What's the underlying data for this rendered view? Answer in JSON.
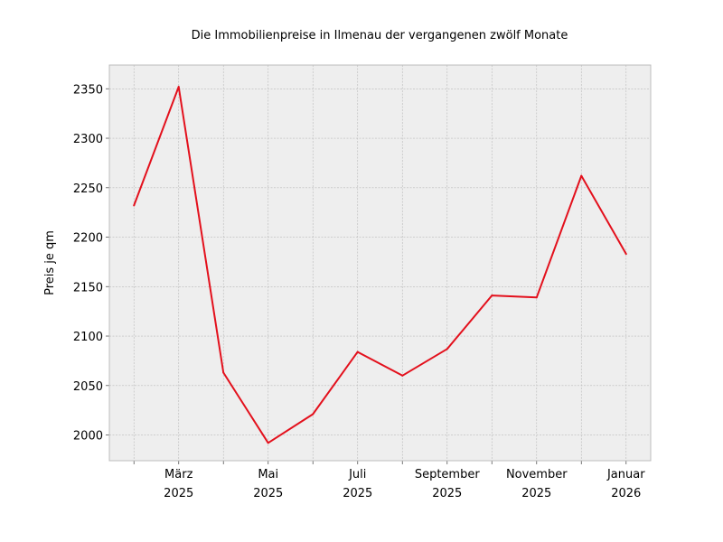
{
  "chart_data": {
    "type": "line",
    "title": "Die Immobilienpreise in Ilmenau der vergangenen zwölf Monate",
    "xlabel": "",
    "ylabel": "Preis je qm",
    "x": [
      "2025-02",
      "2025-03",
      "2025-04",
      "2025-05",
      "2025-06",
      "2025-07",
      "2025-08",
      "2025-09",
      "2025-10",
      "2025-11",
      "2025-12",
      "2026-01"
    ],
    "series": [
      {
        "values": [
          2232,
          2352,
          2063,
          1992,
          2021,
          2084,
          2060,
          2087,
          2141,
          2139,
          2262,
          2183
        ]
      }
    ],
    "x_tick_labels": [
      {
        "x": "2025-03",
        "line1": "März",
        "line2": "2025"
      },
      {
        "x": "2025-05",
        "line1": "Mai",
        "line2": "2025"
      },
      {
        "x": "2025-07",
        "line1": "Juli",
        "line2": "2025"
      },
      {
        "x": "2025-09",
        "line1": "September",
        "line2": "2025"
      },
      {
        "x": "2025-11",
        "line1": "November",
        "line2": "2025"
      },
      {
        "x": "2026-01",
        "line1": "Januar",
        "line2": "2026"
      }
    ],
    "yticks": [
      2000,
      2050,
      2100,
      2150,
      2200,
      2250,
      2300,
      2350
    ],
    "ylim": [
      1974,
      2374
    ],
    "grid": true,
    "colors": {
      "line": "#e3101c",
      "plot_bg": "#eeeeee",
      "grid": "#b9b9b9",
      "frame": "#bcbcbc"
    }
  }
}
